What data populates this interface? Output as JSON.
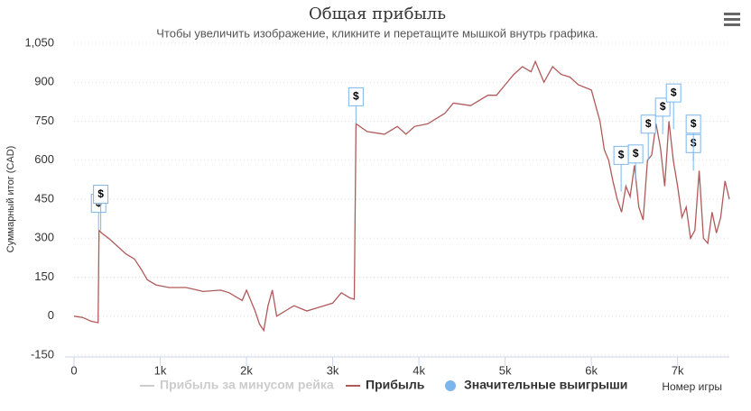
{
  "chart_data": {
    "type": "line",
    "title": "Общая прибыль",
    "subtitle": "Чтобы увеличить изображение, кликните и перетащите мышкой внутрь графика.",
    "y_label": "Суммарный итог (CAD)",
    "x_label": "Номер игры",
    "xlim": [
      0,
      7600
    ],
    "xticks": [
      0,
      {
        "value": 1000,
        "label": "1k"
      },
      {
        "value": 2000,
        "label": "2k"
      },
      {
        "value": 3000,
        "label": "3k"
      },
      {
        "value": 4000,
        "label": "4k"
      },
      {
        "value": 5000,
        "label": "5k"
      },
      {
        "value": 6000,
        "label": "6k"
      },
      {
        "value": 7000,
        "label": "7k"
      }
    ],
    "ylim": [
      -150,
      1050
    ],
    "yticks": [
      -150,
      0,
      150,
      300,
      450,
      600,
      750,
      900,
      {
        "value": 1050,
        "label": "1,050"
      }
    ],
    "grid": true,
    "series": [
      {
        "name": "Прибыль за минусом рейка",
        "color": "#cccccc",
        "visible": false
      },
      {
        "name": "Прибыль",
        "color": "#b05a5a",
        "x": [
          0,
          100,
          200,
          280,
          290,
          320,
          400,
          500,
          600,
          700,
          780,
          850,
          950,
          1100,
          1300,
          1500,
          1700,
          1800,
          1950,
          2000,
          2100,
          2150,
          2200,
          2250,
          2300,
          2350,
          2450,
          2550,
          2700,
          2800,
          2900,
          3000,
          3100,
          3200,
          3250,
          3270,
          3400,
          3600,
          3750,
          3850,
          3950,
          4100,
          4300,
          4400,
          4600,
          4800,
          4900,
          5000,
          5100,
          5200,
          5300,
          5350,
          5450,
          5550,
          5650,
          5750,
          5850,
          6000,
          6050,
          6100,
          6150,
          6200,
          6250,
          6300,
          6350,
          6400,
          6450,
          6500,
          6550,
          6600,
          6650,
          6700,
          6750,
          6800,
          6850,
          6900,
          6950,
          7000,
          7050,
          7100,
          7150,
          7200,
          7250,
          7300,
          7350,
          7400,
          7450,
          7500,
          7550,
          7600
        ],
        "values": [
          0,
          -5,
          -20,
          -25,
          330,
          320,
          300,
          270,
          240,
          220,
          180,
          140,
          120,
          110,
          110,
          95,
          100,
          90,
          60,
          100,
          20,
          -30,
          -55,
          40,
          100,
          0,
          20,
          40,
          20,
          30,
          40,
          50,
          90,
          70,
          65,
          740,
          710,
          700,
          730,
          700,
          730,
          740,
          780,
          820,
          810,
          850,
          850,
          890,
          930,
          960,
          940,
          980,
          900,
          960,
          930,
          920,
          890,
          870,
          810,
          750,
          640,
          600,
          520,
          450,
          400,
          500,
          460,
          580,
          420,
          370,
          600,
          620,
          740,
          650,
          500,
          750,
          600,
          500,
          380,
          420,
          300,
          330,
          560,
          300,
          280,
          400,
          320,
          380,
          520,
          450
        ]
      },
      {
        "name": "Значительные выигрыши",
        "color": "#7cb5ec",
        "type": "flags",
        "x": [
          285,
          310,
          3270,
          6345,
          6513,
          6660,
          6827,
          6953,
          7183,
          7183
        ],
        "values": [
          330,
          330,
          740,
          480,
          520,
          600,
          700,
          720,
          560,
          600
        ],
        "labels": [
          "$",
          "$",
          "$",
          "$",
          "$",
          "$",
          "$",
          "$",
          "$",
          "$"
        ]
      }
    ]
  }
}
